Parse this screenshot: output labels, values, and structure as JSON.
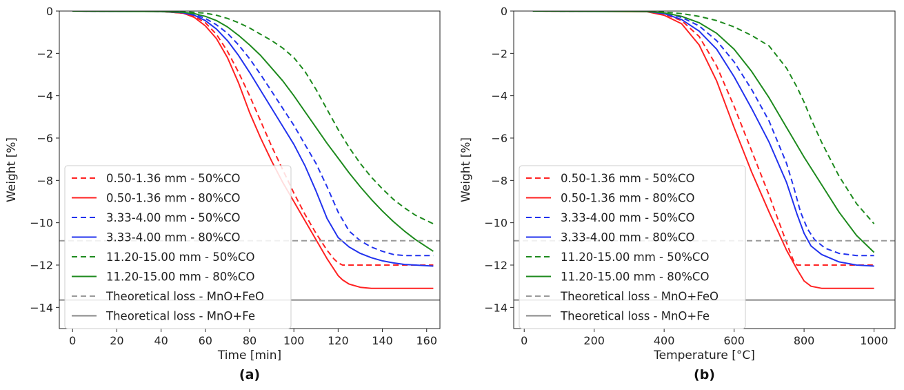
{
  "chart_data": [
    {
      "type": "line",
      "panel_label": "(a)",
      "xlabel": "Time [min]",
      "ylabel": "Weight [%]",
      "xlim": [
        -6,
        166
      ],
      "ylim": [
        -15,
        0
      ],
      "xticks": [
        0,
        20,
        40,
        60,
        80,
        100,
        120,
        140,
        160
      ],
      "yticks": [
        0,
        -2,
        -4,
        -6,
        -8,
        -10,
        -12,
        -14
      ],
      "grid": false,
      "legend_position": "lower-left",
      "series": [
        {
          "name": "0.50-1.36 mm - 50%CO",
          "color": "#ff2222",
          "dash": "dashed",
          "x": [
            0,
            40,
            50,
            55,
            60,
            65,
            70,
            75,
            80,
            85,
            90,
            95,
            100,
            105,
            110,
            115,
            118,
            120,
            122,
            125,
            130,
            140,
            150,
            163
          ],
          "y": [
            0,
            -0.02,
            -0.1,
            -0.25,
            -0.55,
            -1.1,
            -1.9,
            -2.9,
            -4.0,
            -5.2,
            -6.4,
            -7.5,
            -8.6,
            -9.6,
            -10.5,
            -11.3,
            -11.7,
            -11.9,
            -12.0,
            -12.0,
            -12.0,
            -12.0,
            -12.0,
            -12.0
          ]
        },
        {
          "name": "0.50-1.36 mm - 80%CO",
          "color": "#ff2222",
          "dash": "solid",
          "x": [
            0,
            40,
            50,
            55,
            60,
            65,
            70,
            75,
            80,
            85,
            90,
            95,
            100,
            105,
            110,
            115,
            120,
            122,
            125,
            130,
            135,
            140,
            150,
            163
          ],
          "y": [
            0,
            -0.02,
            -0.1,
            -0.3,
            -0.7,
            -1.3,
            -2.2,
            -3.4,
            -4.8,
            -6.0,
            -7.1,
            -8.1,
            -9.0,
            -9.9,
            -10.8,
            -11.7,
            -12.5,
            -12.7,
            -12.9,
            -13.05,
            -13.1,
            -13.1,
            -13.1,
            -13.1
          ]
        },
        {
          "name": "3.33-4.00 mm - 50%CO",
          "color": "#2233ee",
          "dash": "dashed",
          "x": [
            0,
            40,
            50,
            55,
            60,
            65,
            70,
            75,
            80,
            85,
            90,
            95,
            100,
            105,
            110,
            115,
            120,
            125,
            130,
            135,
            140,
            145,
            150,
            155,
            163
          ],
          "y": [
            0,
            -0.02,
            -0.05,
            -0.15,
            -0.35,
            -0.65,
            -1.05,
            -1.6,
            -2.25,
            -3.0,
            -3.8,
            -4.6,
            -5.4,
            -6.3,
            -7.2,
            -8.3,
            -9.5,
            -10.4,
            -10.85,
            -11.15,
            -11.35,
            -11.5,
            -11.55,
            -11.55,
            -11.55
          ]
        },
        {
          "name": "3.33-4.00 mm - 80%CO",
          "color": "#2233ee",
          "dash": "solid",
          "x": [
            0,
            40,
            50,
            55,
            60,
            65,
            70,
            75,
            80,
            85,
            90,
            95,
            100,
            105,
            110,
            115,
            120,
            125,
            130,
            135,
            140,
            145,
            150,
            155,
            163
          ],
          "y": [
            0,
            -0.02,
            -0.08,
            -0.2,
            -0.45,
            -0.85,
            -1.4,
            -2.1,
            -2.9,
            -3.75,
            -4.6,
            -5.45,
            -6.3,
            -7.3,
            -8.5,
            -9.8,
            -10.7,
            -11.15,
            -11.45,
            -11.65,
            -11.8,
            -11.9,
            -11.97,
            -12.0,
            -12.05
          ]
        },
        {
          "name": "11.20-15.00 mm - 50%CO",
          "color": "#1e8a1e",
          "dash": "dashed",
          "x": [
            0,
            40,
            50,
            60,
            65,
            70,
            75,
            80,
            85,
            90,
            95,
            100,
            105,
            110,
            115,
            120,
            125,
            130,
            135,
            140,
            145,
            150,
            155,
            160,
            163
          ],
          "y": [
            0,
            -0.01,
            -0.03,
            -0.1,
            -0.2,
            -0.35,
            -0.55,
            -0.8,
            -1.1,
            -1.4,
            -1.75,
            -2.2,
            -2.85,
            -3.7,
            -4.65,
            -5.6,
            -6.45,
            -7.2,
            -7.85,
            -8.4,
            -8.9,
            -9.3,
            -9.65,
            -9.9,
            -10.05
          ]
        },
        {
          "name": "11.20-15.00 mm - 80%CO",
          "color": "#1e8a1e",
          "dash": "solid",
          "x": [
            0,
            40,
            50,
            55,
            60,
            65,
            70,
            75,
            80,
            85,
            90,
            95,
            100,
            105,
            110,
            115,
            120,
            125,
            130,
            135,
            140,
            145,
            150,
            155,
            163
          ],
          "y": [
            0,
            -0.02,
            -0.06,
            -0.12,
            -0.25,
            -0.45,
            -0.75,
            -1.15,
            -1.6,
            -2.1,
            -2.7,
            -3.3,
            -4.0,
            -4.75,
            -5.5,
            -6.25,
            -6.95,
            -7.65,
            -8.3,
            -8.9,
            -9.45,
            -9.95,
            -10.4,
            -10.8,
            -11.35
          ]
        },
        {
          "name": "Theoretical loss - MnO+FeO",
          "color": "#999999",
          "dash": "dashed",
          "hline": -10.85
        },
        {
          "name": "Theoretical loss - MnO+Fe",
          "color": "#888888",
          "dash": "solid",
          "hline": -13.65
        }
      ]
    },
    {
      "type": "line",
      "panel_label": "(b)",
      "xlabel": "Temperature [°C]",
      "ylabel": "Weight [%]",
      "xlim": [
        -30,
        1060
      ],
      "ylim": [
        -15,
        0
      ],
      "xticks": [
        0,
        200,
        400,
        600,
        800,
        1000
      ],
      "yticks": [
        0,
        -2,
        -4,
        -6,
        -8,
        -10,
        -12,
        -14
      ],
      "grid": false,
      "legend_position": "lower-left",
      "series": [
        {
          "name": "0.50-1.36 mm - 50%CO",
          "color": "#ff2222",
          "dash": "dashed",
          "x": [
            25,
            350,
            400,
            450,
            500,
            550,
            600,
            650,
            700,
            740,
            760,
            770,
            780,
            790,
            800,
            850,
            900,
            950,
            1000
          ],
          "y": [
            0,
            -0.02,
            -0.15,
            -0.45,
            -1.2,
            -2.6,
            -4.5,
            -6.6,
            -8.7,
            -10.5,
            -11.4,
            -11.8,
            -12.0,
            -12.0,
            -12.0,
            -12.0,
            -12.0,
            -12.0,
            -12.0
          ]
        },
        {
          "name": "0.50-1.36 mm - 80%CO",
          "color": "#ff2222",
          "dash": "solid",
          "x": [
            25,
            350,
            400,
            450,
            500,
            550,
            600,
            650,
            700,
            750,
            780,
            800,
            820,
            850,
            900,
            950,
            1000
          ],
          "y": [
            0,
            -0.03,
            -0.2,
            -0.6,
            -1.6,
            -3.3,
            -5.5,
            -7.6,
            -9.5,
            -11.3,
            -12.2,
            -12.75,
            -13.0,
            -13.1,
            -13.1,
            -13.1,
            -13.1
          ]
        },
        {
          "name": "3.33-4.00 mm - 50%CO",
          "color": "#2233ee",
          "dash": "dashed",
          "x": [
            25,
            350,
            400,
            450,
            500,
            550,
            600,
            650,
            700,
            750,
            770,
            790,
            810,
            830,
            860,
            900,
            950,
            1000
          ],
          "y": [
            0,
            -0.01,
            -0.1,
            -0.3,
            -0.7,
            -1.4,
            -2.4,
            -3.7,
            -5.2,
            -7.2,
            -8.3,
            -9.5,
            -10.3,
            -10.8,
            -11.2,
            -11.45,
            -11.55,
            -11.55
          ]
        },
        {
          "name": "3.33-4.00 mm - 80%CO",
          "color": "#2233ee",
          "dash": "solid",
          "x": [
            25,
            350,
            400,
            450,
            500,
            550,
            600,
            650,
            700,
            750,
            780,
            800,
            820,
            850,
            900,
            950,
            1000
          ],
          "y": [
            0,
            -0.02,
            -0.12,
            -0.4,
            -0.95,
            -1.8,
            -3.1,
            -4.6,
            -6.2,
            -8.1,
            -9.6,
            -10.5,
            -11.1,
            -11.5,
            -11.85,
            -12.0,
            -12.05
          ]
        },
        {
          "name": "11.20-15.00 mm - 50%CO",
          "color": "#1e8a1e",
          "dash": "dashed",
          "x": [
            25,
            350,
            400,
            450,
            500,
            550,
            600,
            650,
            700,
            750,
            780,
            800,
            820,
            850,
            900,
            950,
            1000
          ],
          "y": [
            0,
            -0.01,
            -0.05,
            -0.12,
            -0.25,
            -0.45,
            -0.75,
            -1.15,
            -1.65,
            -2.7,
            -3.6,
            -4.3,
            -5.1,
            -6.2,
            -7.8,
            -9.1,
            -10.05
          ]
        },
        {
          "name": "11.20-15.00 mm - 80%CO",
          "color": "#1e8a1e",
          "dash": "solid",
          "x": [
            25,
            350,
            400,
            450,
            500,
            550,
            600,
            650,
            700,
            750,
            800,
            850,
            900,
            950,
            1000
          ],
          "y": [
            0,
            -0.02,
            -0.08,
            -0.25,
            -0.55,
            -1.05,
            -1.8,
            -2.85,
            -4.1,
            -5.5,
            -6.9,
            -8.2,
            -9.5,
            -10.6,
            -11.4
          ]
        },
        {
          "name": "Theoretical loss - MnO+FeO",
          "color": "#999999",
          "dash": "dashed",
          "hline": -10.85
        },
        {
          "name": "Theoretical loss - MnO+Fe",
          "color": "#888888",
          "dash": "solid",
          "hline": -13.65
        }
      ]
    }
  ]
}
